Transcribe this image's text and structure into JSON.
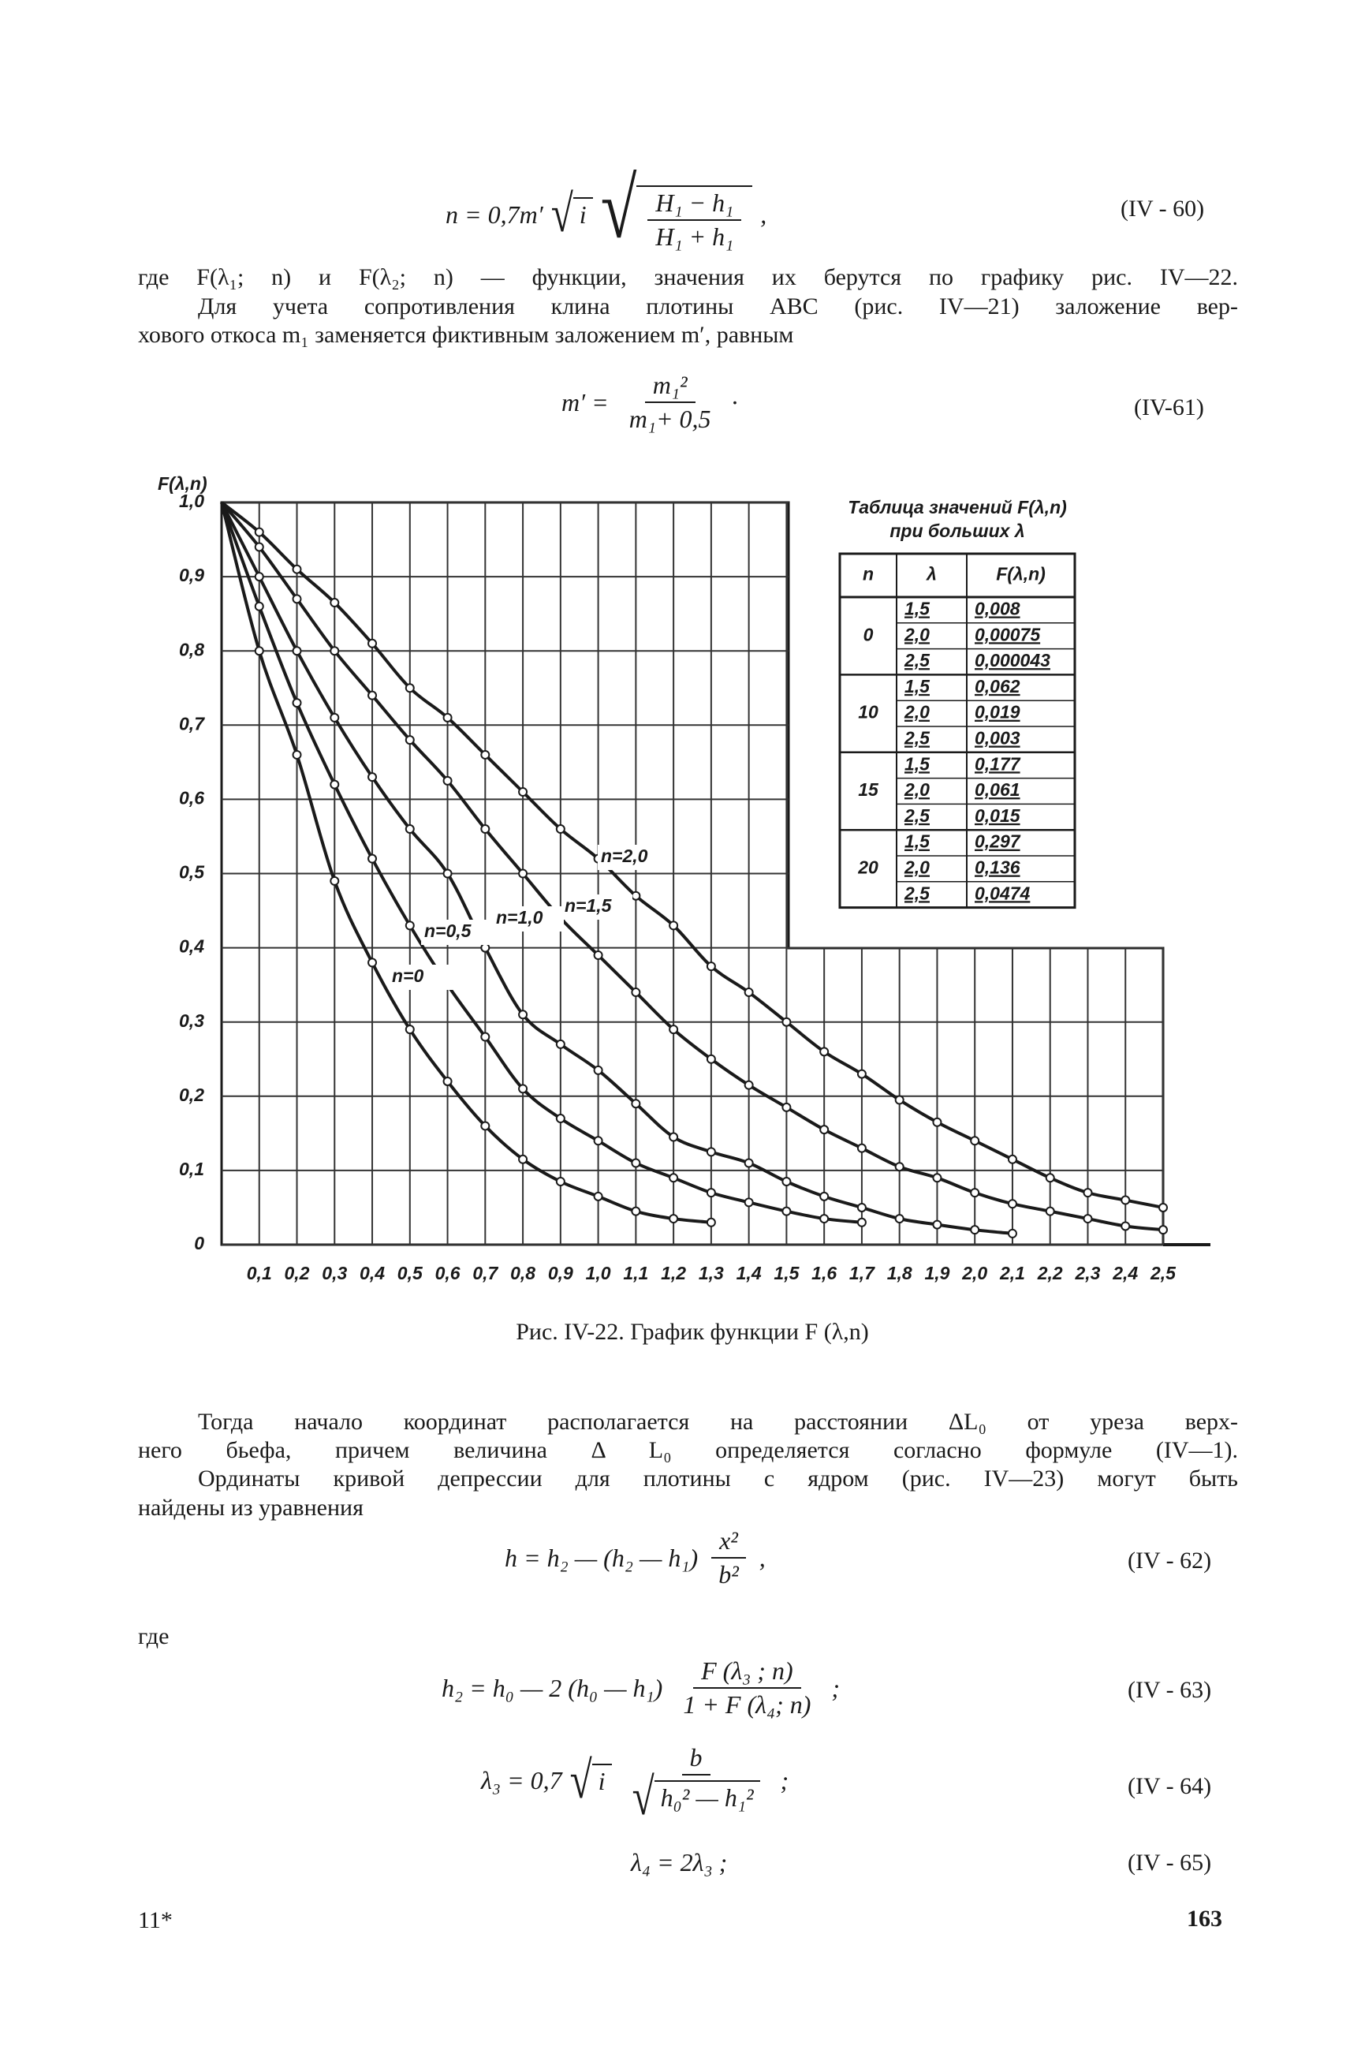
{
  "equation_60": {
    "lhs": "n = 0,7m′",
    "root_1": "i",
    "num": "H₁ − h₁",
    "den": "H₁ + h₁",
    "tail": ",",
    "number": "(IV - 60)"
  },
  "text_1": [
    "где F(λ₁; n) и F(λ₂; n) — функции, значения их берутся по графику рис. IV—22.",
    "Для учета сопротивления клина плотины ABC (рис. IV—21) заложение вер-",
    "хового откоса m₁ заменяется фиктивным заложением m′, равным"
  ],
  "equation_61": {
    "lhs": "m′ =",
    "num": "m₁²",
    "den": "m₁+ 0,5",
    "tail": "·",
    "number": "(IV-61)"
  },
  "chart_data": {
    "type": "line",
    "y_label": "F(λ,n)",
    "x": [
      0,
      0.1,
      0.2,
      0.3,
      0.4,
      0.5,
      0.6,
      0.7,
      0.8,
      0.9,
      1.0,
      1.1,
      1.2,
      1.3,
      1.4,
      1.5,
      1.6,
      1.7,
      1.8,
      1.9,
      2.0,
      2.1,
      2.2,
      2.3,
      2.4,
      2.5
    ],
    "xlim": [
      0,
      2.5
    ],
    "ylim": [
      0,
      1.0
    ],
    "xticks": [
      {
        "value": 0.1,
        "label": "0,1"
      },
      {
        "value": 0.2,
        "label": "0,2"
      },
      {
        "value": 0.3,
        "label": "0,3"
      },
      {
        "value": 0.4,
        "label": "0,4"
      },
      {
        "value": 0.5,
        "label": "0,5"
      },
      {
        "value": 0.6,
        "label": "0,6"
      },
      {
        "value": 0.7,
        "label": "0,7"
      },
      {
        "value": 0.8,
        "label": "0,8"
      },
      {
        "value": 0.9,
        "label": "0,9"
      },
      {
        "value": 1.0,
        "label": "1,0"
      },
      {
        "value": 1.1,
        "label": "1,1"
      },
      {
        "value": 1.2,
        "label": "1,2"
      },
      {
        "value": 1.3,
        "label": "1,3"
      },
      {
        "value": 1.4,
        "label": "1,4"
      },
      {
        "value": 1.5,
        "label": "1,5"
      },
      {
        "value": 1.6,
        "label": "1,6"
      },
      {
        "value": 1.7,
        "label": "1,7"
      },
      {
        "value": 1.8,
        "label": "1,8"
      },
      {
        "value": 1.9,
        "label": "1,9"
      },
      {
        "value": 2.0,
        "label": "2,0"
      },
      {
        "value": 2.1,
        "label": "2,1"
      },
      {
        "value": 2.2,
        "label": "2,2"
      },
      {
        "value": 2.3,
        "label": "2,3"
      },
      {
        "value": 2.4,
        "label": "2,4"
      },
      {
        "value": 2.5,
        "label": "2,5"
      }
    ],
    "yticks": [
      0,
      {
        "value": 0.1,
        "label": "0,1"
      },
      {
        "value": 0.2,
        "label": "0,2"
      },
      {
        "value": 0.3,
        "label": "0,3"
      },
      {
        "value": 0.4,
        "label": "0,4"
      },
      {
        "value": 0.5,
        "label": "0,5"
      },
      {
        "value": 0.6,
        "label": "0,6"
      },
      {
        "value": 0.7,
        "label": "0,7"
      },
      {
        "value": 0.8,
        "label": "0,8"
      },
      {
        "value": 0.9,
        "label": "0,9"
      },
      {
        "value": 1.0,
        "label": "1,0"
      }
    ],
    "grid": true,
    "series": [
      {
        "name": "n=2,0",
        "color": "#1a1a1a",
        "values": [
          1,
          0.96,
          0.91,
          0.865,
          0.81,
          0.75,
          0.71,
          0.66,
          0.61,
          0.56,
          0.52,
          0.47,
          0.43,
          0.375,
          0.34,
          0.3,
          0.26,
          0.23,
          0.195,
          0.165,
          0.14,
          0.115,
          0.09,
          0.07,
          0.06,
          0.05
        ]
      },
      {
        "name": "n=1,5",
        "color": "#1a1a1a",
        "values": [
          1,
          0.94,
          0.87,
          0.8,
          0.74,
          0.68,
          0.625,
          0.56,
          0.5,
          0.44,
          0.39,
          0.34,
          0.29,
          0.25,
          0.215,
          0.185,
          0.155,
          0.13,
          0.105,
          0.09,
          0.07,
          0.055,
          0.045,
          0.035,
          0.025,
          0.02
        ]
      },
      {
        "name": "n=1,0",
        "color": "#1a1a1a",
        "values": [
          1,
          0.9,
          0.8,
          0.71,
          0.63,
          0.56,
          0.5,
          0.4,
          0.31,
          0.27,
          0.235,
          0.19,
          0.145,
          0.125,
          0.11,
          0.085,
          0.065,
          0.05,
          0.035,
          0.027,
          0.02,
          0.015,
          null,
          null,
          null,
          null
        ]
      },
      {
        "name": "n=0,5",
        "color": "#1a1a1a",
        "values": [
          1,
          0.86,
          0.73,
          0.62,
          0.52,
          0.43,
          0.35,
          0.28,
          0.21,
          0.17,
          0.14,
          0.11,
          0.09,
          0.07,
          0.057,
          0.045,
          0.035,
          0.03,
          null,
          null,
          null,
          null,
          null,
          null,
          null,
          null
        ]
      },
      {
        "name": "n=0",
        "color": "#1a1a1a",
        "values": [
          1,
          0.8,
          0.66,
          0.49,
          0.38,
          0.29,
          0.22,
          0.16,
          0.115,
          0.085,
          0.065,
          0.045,
          0.035,
          0.03,
          null,
          null,
          null,
          null,
          null,
          null,
          null,
          null,
          null,
          null,
          null,
          null
        ]
      }
    ]
  },
  "table": {
    "title": [
      "Таблица значений F(λ,n)",
      "при больших λ"
    ],
    "header": [
      "n",
      "λ",
      "F(λ,n)"
    ],
    "groups": [
      {
        "n": "0",
        "rows": [
          [
            "1,5",
            "0,008"
          ],
          [
            "2,0",
            "0,00075"
          ],
          [
            "2,5",
            "0,000043"
          ]
        ]
      },
      {
        "n": "10",
        "rows": [
          [
            "1,5",
            "0,062"
          ],
          [
            "2,0",
            "0,019"
          ],
          [
            "2,5",
            "0,003"
          ]
        ]
      },
      {
        "n": "15",
        "rows": [
          [
            "1,5",
            "0,177"
          ],
          [
            "2,0",
            "0,061"
          ],
          [
            "2,5",
            "0,015"
          ]
        ]
      },
      {
        "n": "20",
        "rows": [
          [
            "1,5",
            "0,297"
          ],
          [
            "2,0",
            "0,136"
          ],
          [
            "2,5",
            "0,0474"
          ]
        ]
      }
    ]
  },
  "caption": "Рис. IV-22. График функции F (λ,n)",
  "text_2": [
    "Тогда начало координат располагается на расстоянии ΔL₀ от уреза верх-",
    "него бьефа, причем величина Δ L₀ определяется согласно формуле (IV—1).",
    "Ординаты кривой депрессии для плотины с ядром (рис. IV—23) могут быть",
    "найдены из уравнения"
  ],
  "equation_62": {
    "lhs": "h = h₂ — (h₂ — h₁)",
    "num": "x²",
    "den": "b²",
    "tail": ",",
    "number": "(IV - 62)"
  },
  "where": "где",
  "equation_63": {
    "lhs": "h₂ = h₀ — 2 (h₀ — h₁)",
    "num": "F (λ₃ ; n)",
    "den": "1 + F (λ₄; n)",
    "tail": ";",
    "number": "(IV - 63)"
  },
  "equation_64": {
    "lhs": "λ₃ = 0,7",
    "root_1": "i",
    "num": "b",
    "den_root": "h₀² — h₁²",
    "tail": ";",
    "number": "(IV - 64)"
  },
  "equation_65": {
    "lhs": "λ₄ = 2λ₃ ;",
    "number": "(IV - 65)"
  },
  "footer": {
    "signature": "11*",
    "page": "163"
  }
}
